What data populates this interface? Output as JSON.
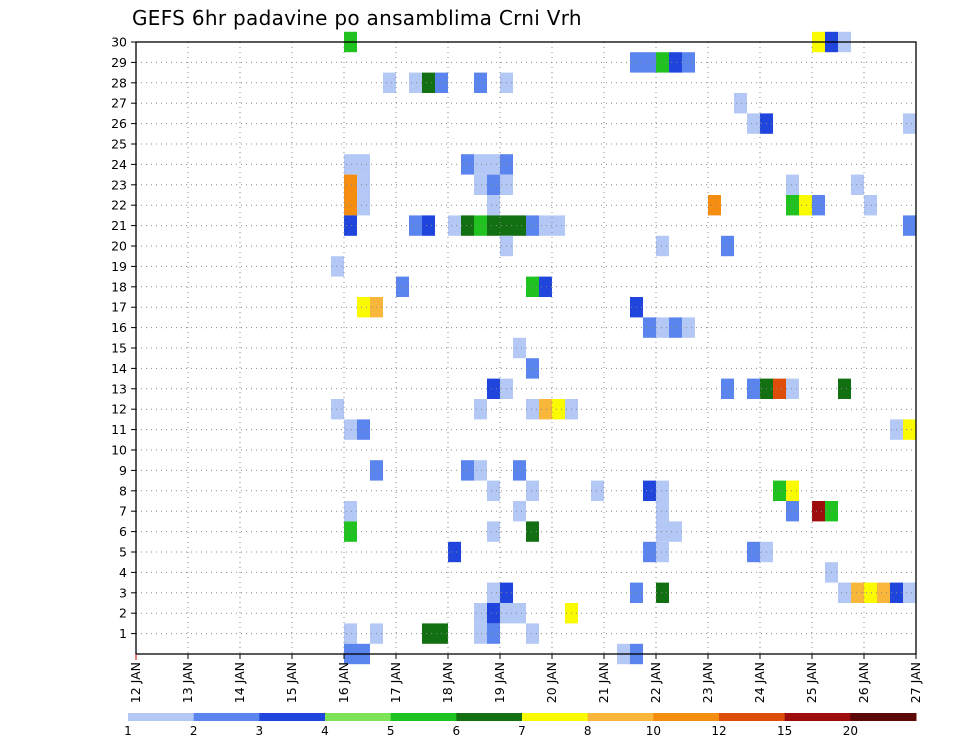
{
  "title": "GEFS 6hr padavine po ansamblima Crni Vrh",
  "chart_data": {
    "type": "heatmap",
    "title": "GEFS 6hr padavine po ansamblima Crni Vrh",
    "xlabel": "",
    "ylabel": "",
    "x_tick_labels": [
      "12 JAN",
      "13 JAN",
      "14 JAN",
      "15 JAN",
      "16 JAN",
      "17 JAN",
      "18 JAN",
      "19 JAN",
      "20 JAN",
      "21 JAN",
      "22 JAN",
      "23 JAN",
      "24 JAN",
      "25 JAN",
      "26 JAN",
      "27 JAN"
    ],
    "y_tick_labels": [
      "1",
      "2",
      "3",
      "4",
      "5",
      "6",
      "7",
      "8",
      "9",
      "10",
      "11",
      "12",
      "13",
      "14",
      "15",
      "16",
      "17",
      "18",
      "19",
      "20",
      "21",
      "22",
      "23",
      "24",
      "25",
      "26",
      "27",
      "28",
      "29",
      "30"
    ],
    "x_step_hours": 6,
    "ylim": [
      0,
      30
    ],
    "grid": true,
    "legend": {
      "position": "bottom",
      "labels": [
        "1",
        "2",
        "3",
        "4",
        "5",
        "6",
        "7",
        "8",
        "10",
        "12",
        "15",
        "20"
      ],
      "colors": [
        "#b3c8f5",
        "#5b85ee",
        "#1f45dc",
        "#7fe356",
        "#1fc21f",
        "#127012",
        "#fafa00",
        "#f8b73a",
        "#f48d10",
        "#df4d0b",
        "#9e0d0d",
        "#5c0808"
      ]
    },
    "cells": [
      {
        "x": "16 JAN 00",
        "y": 30,
        "v": 5
      },
      {
        "x": "25 JAN 00",
        "y": 30,
        "v": 7
      },
      {
        "x": "25 JAN 06",
        "y": 30,
        "v": 3
      },
      {
        "x": "25 JAN 12",
        "y": 30,
        "v": 1
      },
      {
        "x": "21 JAN 12",
        "y": 29,
        "v": 2
      },
      {
        "x": "21 JAN 18",
        "y": 29,
        "v": 2
      },
      {
        "x": "22 JAN 00",
        "y": 29,
        "v": 5
      },
      {
        "x": "22 JAN 06",
        "y": 29,
        "v": 3
      },
      {
        "x": "22 JAN 12",
        "y": 29,
        "v": 2
      },
      {
        "x": "16 JAN 18",
        "y": 28,
        "v": 1
      },
      {
        "x": "17 JAN 06",
        "y": 28,
        "v": 1
      },
      {
        "x": "17 JAN 12",
        "y": 28,
        "v": 6
      },
      {
        "x": "17 JAN 18",
        "y": 28,
        "v": 2
      },
      {
        "x": "18 JAN 12",
        "y": 28,
        "v": 2
      },
      {
        "x": "19 JAN 00",
        "y": 28,
        "v": 1
      },
      {
        "x": "23 JAN 12",
        "y": 27,
        "v": 1
      },
      {
        "x": "23 JAN 18",
        "y": 26,
        "v": 1
      },
      {
        "x": "24 JAN 00",
        "y": 26,
        "v": 3
      },
      {
        "x": "26 JAN 18",
        "y": 26,
        "v": 1
      },
      {
        "x": "16 JAN 00",
        "y": 24,
        "v": 1
      },
      {
        "x": "16 JAN 06",
        "y": 24,
        "v": 1
      },
      {
        "x": "18 JAN 06",
        "y": 24,
        "v": 2
      },
      {
        "x": "18 JAN 12",
        "y": 24,
        "v": 1
      },
      {
        "x": "18 JAN 18",
        "y": 24,
        "v": 1
      },
      {
        "x": "19 JAN 00",
        "y": 24,
        "v": 2
      },
      {
        "x": "16 JAN 00",
        "y": 23,
        "v": 10
      },
      {
        "x": "16 JAN 06",
        "y": 23,
        "v": 1
      },
      {
        "x": "18 JAN 12",
        "y": 23,
        "v": 1
      },
      {
        "x": "18 JAN 18",
        "y": 23,
        "v": 2
      },
      {
        "x": "19 JAN 00",
        "y": 23,
        "v": 1
      },
      {
        "x": "24 JAN 12",
        "y": 23,
        "v": 1
      },
      {
        "x": "25 JAN 18",
        "y": 23,
        "v": 1
      },
      {
        "x": "16 JAN 00",
        "y": 22,
        "v": 10
      },
      {
        "x": "16 JAN 06",
        "y": 22,
        "v": 1
      },
      {
        "x": "18 JAN 18",
        "y": 22,
        "v": 1
      },
      {
        "x": "23 JAN 00",
        "y": 22,
        "v": 10
      },
      {
        "x": "24 JAN 12",
        "y": 22,
        "v": 5
      },
      {
        "x": "24 JAN 18",
        "y": 22,
        "v": 7
      },
      {
        "x": "25 JAN 00",
        "y": 22,
        "v": 2
      },
      {
        "x": "26 JAN 00",
        "y": 22,
        "v": 1
      },
      {
        "x": "16 JAN 00",
        "y": 21,
        "v": 3
      },
      {
        "x": "17 JAN 06",
        "y": 21,
        "v": 2
      },
      {
        "x": "17 JAN 12",
        "y": 21,
        "v": 3
      },
      {
        "x": "18 JAN 00",
        "y": 21,
        "v": 1
      },
      {
        "x": "18 JAN 06",
        "y": 21,
        "v": 6
      },
      {
        "x": "18 JAN 12",
        "y": 21,
        "v": 5
      },
      {
        "x": "18 JAN 18",
        "y": 21,
        "v": 6
      },
      {
        "x": "19 JAN 00",
        "y": 21,
        "v": 6
      },
      {
        "x": "19 JAN 06",
        "y": 21,
        "v": 6
      },
      {
        "x": "19 JAN 12",
        "y": 21,
        "v": 2
      },
      {
        "x": "19 JAN 18",
        "y": 21,
        "v": 1
      },
      {
        "x": "20 JAN 00",
        "y": 21,
        "v": 1
      },
      {
        "x": "26 JAN 18",
        "y": 21,
        "v": 2
      },
      {
        "x": "19 JAN 00",
        "y": 20,
        "v": 1
      },
      {
        "x": "22 JAN 00",
        "y": 20,
        "v": 1
      },
      {
        "x": "23 JAN 06",
        "y": 20,
        "v": 2
      },
      {
        "x": "15 JAN 18",
        "y": 19,
        "v": 1
      },
      {
        "x": "17 JAN 00",
        "y": 18,
        "v": 2
      },
      {
        "x": "19 JAN 12",
        "y": 18,
        "v": 5
      },
      {
        "x": "19 JAN 18",
        "y": 18,
        "v": 3
      },
      {
        "x": "16 JAN 06",
        "y": 17,
        "v": 7
      },
      {
        "x": "16 JAN 12",
        "y": 17,
        "v": 8
      },
      {
        "x": "21 JAN 12",
        "y": 17,
        "v": 3
      },
      {
        "x": "21 JAN 18",
        "y": 16,
        "v": 2
      },
      {
        "x": "22 JAN 00",
        "y": 16,
        "v": 1
      },
      {
        "x": "22 JAN 06",
        "y": 16,
        "v": 2
      },
      {
        "x": "22 JAN 12",
        "y": 16,
        "v": 1
      },
      {
        "x": "19 JAN 06",
        "y": 15,
        "v": 1
      },
      {
        "x": "19 JAN 12",
        "y": 14,
        "v": 2
      },
      {
        "x": "18 JAN 18",
        "y": 13,
        "v": 3
      },
      {
        "x": "19 JAN 00",
        "y": 13,
        "v": 1
      },
      {
        "x": "23 JAN 06",
        "y": 13,
        "v": 2
      },
      {
        "x": "23 JAN 18",
        "y": 13,
        "v": 2
      },
      {
        "x": "24 JAN 00",
        "y": 13,
        "v": 6
      },
      {
        "x": "24 JAN 06",
        "y": 13,
        "v": 12
      },
      {
        "x": "24 JAN 12",
        "y": 13,
        "v": 1
      },
      {
        "x": "25 JAN 12",
        "y": 13,
        "v": 6
      },
      {
        "x": "15 JAN 18",
        "y": 12,
        "v": 1
      },
      {
        "x": "18 JAN 12",
        "y": 12,
        "v": 1
      },
      {
        "x": "19 JAN 12",
        "y": 12,
        "v": 1
      },
      {
        "x": "19 JAN 18",
        "y": 12,
        "v": 8
      },
      {
        "x": "20 JAN 00",
        "y": 12,
        "v": 7
      },
      {
        "x": "20 JAN 06",
        "y": 12,
        "v": 1
      },
      {
        "x": "16 JAN 00",
        "y": 11,
        "v": 1
      },
      {
        "x": "16 JAN 06",
        "y": 11,
        "v": 2
      },
      {
        "x": "26 JAN 12",
        "y": 11,
        "v": 1
      },
      {
        "x": "26 JAN 18",
        "y": 11,
        "v": 7
      },
      {
        "x": "16 JAN 12",
        "y": 9,
        "v": 2
      },
      {
        "x": "18 JAN 06",
        "y": 9,
        "v": 2
      },
      {
        "x": "18 JAN 12",
        "y": 9,
        "v": 1
      },
      {
        "x": "19 JAN 06",
        "y": 9,
        "v": 2
      },
      {
        "x": "18 JAN 18",
        "y": 8,
        "v": 1
      },
      {
        "x": "19 JAN 12",
        "y": 8,
        "v": 1
      },
      {
        "x": "20 JAN 18",
        "y": 8,
        "v": 1
      },
      {
        "x": "21 JAN 18",
        "y": 8,
        "v": 3
      },
      {
        "x": "22 JAN 00",
        "y": 8,
        "v": 1
      },
      {
        "x": "24 JAN 06",
        "y": 8,
        "v": 5
      },
      {
        "x": "24 JAN 12",
        "y": 8,
        "v": 7
      },
      {
        "x": "16 JAN 00",
        "y": 7,
        "v": 1
      },
      {
        "x": "19 JAN 06",
        "y": 7,
        "v": 1
      },
      {
        "x": "22 JAN 00",
        "y": 7,
        "v": 1
      },
      {
        "x": "24 JAN 12",
        "y": 7,
        "v": 2
      },
      {
        "x": "25 JAN 00",
        "y": 7,
        "v": 15
      },
      {
        "x": "25 JAN 06",
        "y": 7,
        "v": 5
      },
      {
        "x": "16 JAN 00",
        "y": 6,
        "v": 5
      },
      {
        "x": "18 JAN 18",
        "y": 6,
        "v": 1
      },
      {
        "x": "19 JAN 12",
        "y": 6,
        "v": 6
      },
      {
        "x": "22 JAN 00",
        "y": 6,
        "v": 1
      },
      {
        "x": "22 JAN 06",
        "y": 6,
        "v": 1
      },
      {
        "x": "18 JAN 00",
        "y": 5,
        "v": 3
      },
      {
        "x": "21 JAN 18",
        "y": 5,
        "v": 2
      },
      {
        "x": "22 JAN 00",
        "y": 5,
        "v": 1
      },
      {
        "x": "23 JAN 18",
        "y": 5,
        "v": 2
      },
      {
        "x": "24 JAN 00",
        "y": 5,
        "v": 1
      },
      {
        "x": "25 JAN 06",
        "y": 4,
        "v": 1
      },
      {
        "x": "18 JAN 18",
        "y": 3,
        "v": 1
      },
      {
        "x": "19 JAN 00",
        "y": 3,
        "v": 3
      },
      {
        "x": "21 JAN 12",
        "y": 3,
        "v": 2
      },
      {
        "x": "22 JAN 00",
        "y": 3,
        "v": 6
      },
      {
        "x": "25 JAN 12",
        "y": 3,
        "v": 1
      },
      {
        "x": "25 JAN 18",
        "y": 3,
        "v": 8
      },
      {
        "x": "26 JAN 00",
        "y": 3,
        "v": 7
      },
      {
        "x": "26 JAN 06",
        "y": 3,
        "v": 8
      },
      {
        "x": "26 JAN 12",
        "y": 3,
        "v": 3
      },
      {
        "x": "26 JAN 18",
        "y": 3,
        "v": 1
      },
      {
        "x": "18 JAN 12",
        "y": 2,
        "v": 1
      },
      {
        "x": "18 JAN 18",
        "y": 2,
        "v": 3
      },
      {
        "x": "19 JAN 00",
        "y": 2,
        "v": 1
      },
      {
        "x": "19 JAN 06",
        "y": 2,
        "v": 1
      },
      {
        "x": "20 JAN 06",
        "y": 2,
        "v": 7
      },
      {
        "x": "16 JAN 00",
        "y": 1,
        "v": 1
      },
      {
        "x": "16 JAN 12",
        "y": 1,
        "v": 1
      },
      {
        "x": "17 JAN 12",
        "y": 1,
        "v": 6
      },
      {
        "x": "17 JAN 18",
        "y": 1,
        "v": 6
      },
      {
        "x": "18 JAN 12",
        "y": 1,
        "v": 1
      },
      {
        "x": "18 JAN 18",
        "y": 1,
        "v": 2
      },
      {
        "x": "19 JAN 12",
        "y": 1,
        "v": 1
      },
      {
        "x": "16 JAN 00",
        "y": 0,
        "v": 2
      },
      {
        "x": "16 JAN 06",
        "y": 0,
        "v": 2
      },
      {
        "x": "21 JAN 06",
        "y": 0,
        "v": 1
      },
      {
        "x": "21 JAN 12",
        "y": 0,
        "v": 2
      }
    ]
  }
}
